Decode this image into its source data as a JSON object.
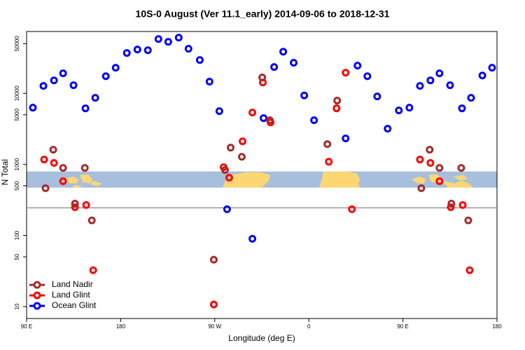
{
  "chart_data": {
    "type": "scatter",
    "title": "10S-0 August (Ver 11.1_early)   2014-09-06 to 2018-12-31",
    "x_label": "Longitude (deg E)",
    "y_label": "N Total",
    "log_y": true,
    "xlim": [
      90,
      540
    ],
    "ylim": [
      6.8,
      74000
    ],
    "xticks": [
      {
        "value": 90,
        "label": "90 E"
      },
      180,
      {
        "value": 270,
        "label": "90 W"
      },
      {
        "value": 360,
        "label": "0"
      },
      {
        "value": 450,
        "label": "90 E"
      },
      {
        "value": 540,
        "label": "180"
      }
    ],
    "yticks": [
      10,
      50,
      100,
      500,
      1000,
      5000,
      10000,
      50000
    ],
    "hline": 245,
    "legend": "lower left",
    "series": [
      {
        "name": "Land Nadir",
        "color": "#a52a2a",
        "x": [
          108.1,
          115.5,
          124.9,
          136.3,
          145.7,
          152.4,
          269.1,
          279.8,
          285.2,
          295.9,
          315.4,
          322.7,
          377.7,
          387.1,
          467.6,
          475.6,
          485.0,
          496.4,
          505.8,
          512.5
        ],
        "values": [
          463,
          1610,
          893,
          281,
          893,
          163,
          45.7,
          834,
          1720,
          1280,
          16700,
          4180,
          1930,
          7890,
          463,
          1610,
          893,
          281,
          893,
          163
        ]
      },
      {
        "name": "Land Glint",
        "color": "#ff0000",
        "x": [
          106.8,
          116.2,
          124.9,
          136.3,
          147.0,
          153.7,
          269.1,
          278.5,
          283.8,
          296.6,
          306.0,
          316.0,
          323.4,
          379.1,
          386.5,
          395.2,
          401.2,
          466.3,
          476.3,
          485.0,
          495.8,
          507.2,
          513.9
        ],
        "values": [
          1170,
          1050,
          580,
          250,
          268,
          32.5,
          10.7,
          914,
          650,
          2110,
          5360,
          14200,
          3900,
          1090,
          6140,
          19500,
          234,
          1170,
          1050,
          580,
          250,
          268,
          32.5
        ]
      },
      {
        "name": "Ocean Glint",
        "color": "#0000ff",
        "x": [
          96.0,
          106.1,
          116.2,
          124.9,
          134.9,
          146.3,
          155.7,
          165.8,
          175.2,
          185.9,
          196.0,
          206.0,
          216.1,
          225.5,
          235.5,
          244.9,
          255.7,
          265.0,
          274.4,
          281.8,
          306.0,
          316.7,
          326.8,
          335.5,
          345.5,
          355.6,
          365.0,
          395.2,
          406.6,
          416.0,
          425.4,
          435.4,
          446.1,
          456.2,
          466.3,
          476.3,
          485.0,
          495.1,
          506.5,
          515.2,
          526.0,
          535.3
        ],
        "values": [
          6280,
          12700,
          15200,
          19100,
          13000,
          6140,
          8630,
          17400,
          22900,
          36900,
          41300,
          40400,
          58000,
          53000,
          60700,
          42300,
          29400,
          14600,
          5610,
          234,
          90,
          4470,
          23400,
          38500,
          26900,
          9330,
          4180,
          2320,
          24500,
          17400,
          9040,
          3180,
          5740,
          6280,
          12700,
          15200,
          19100,
          13000,
          6140,
          8630,
          17800,
          22900
        ]
      }
    ]
  }
}
